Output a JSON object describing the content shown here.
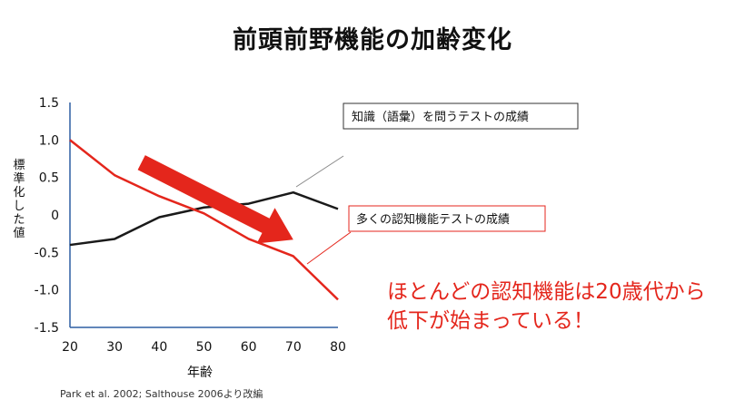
{
  "title": "前頭前野機能の加齢変化",
  "source": "Park et al. 2002; Salthouse 2006より改編",
  "callout": {
    "line1": "ほとんどの認知機能は20歳代から",
    "line2": "低下が始まっている！"
  },
  "colors": {
    "red": "#e4261c",
    "black": "#1a1a1a",
    "axis": "#2e5fa3"
  },
  "chart_data": {
    "type": "line",
    "xlabel": "年齢",
    "ylabel": "標準化した値",
    "x": [
      20,
      30,
      40,
      50,
      60,
      70,
      80
    ],
    "xlim": [
      20,
      80
    ],
    "ylim": [
      -1.5,
      1.5
    ],
    "yticks": [
      1.5,
      1.0,
      0.5,
      0,
      -0.5,
      -1.0,
      -1.5
    ],
    "ytick_labels": [
      "1.5",
      "1.0",
      "0.5",
      "0",
      "-0.5",
      "-1.0",
      "-1.5"
    ],
    "series": [
      {
        "name": "知識（語彙）を問うテストの成績",
        "color": "#1a1a1a",
        "x": [
          20,
          30,
          40,
          50,
          60,
          70,
          80
        ],
        "values": [
          -0.4,
          -0.32,
          -0.03,
          0.1,
          0.15,
          0.3,
          0.08
        ]
      },
      {
        "name": "多くの認知機能テストの成績",
        "color": "#e4261c",
        "x": [
          20,
          30,
          40,
          50,
          60,
          70,
          80
        ],
        "values": [
          1.0,
          0.53,
          0.25,
          0.02,
          -0.32,
          -0.55,
          -1.13
        ]
      }
    ],
    "annotation_arrow": {
      "from": [
        36,
        0.7
      ],
      "to": [
        70,
        -0.33
      ],
      "meaning": "decline"
    }
  }
}
